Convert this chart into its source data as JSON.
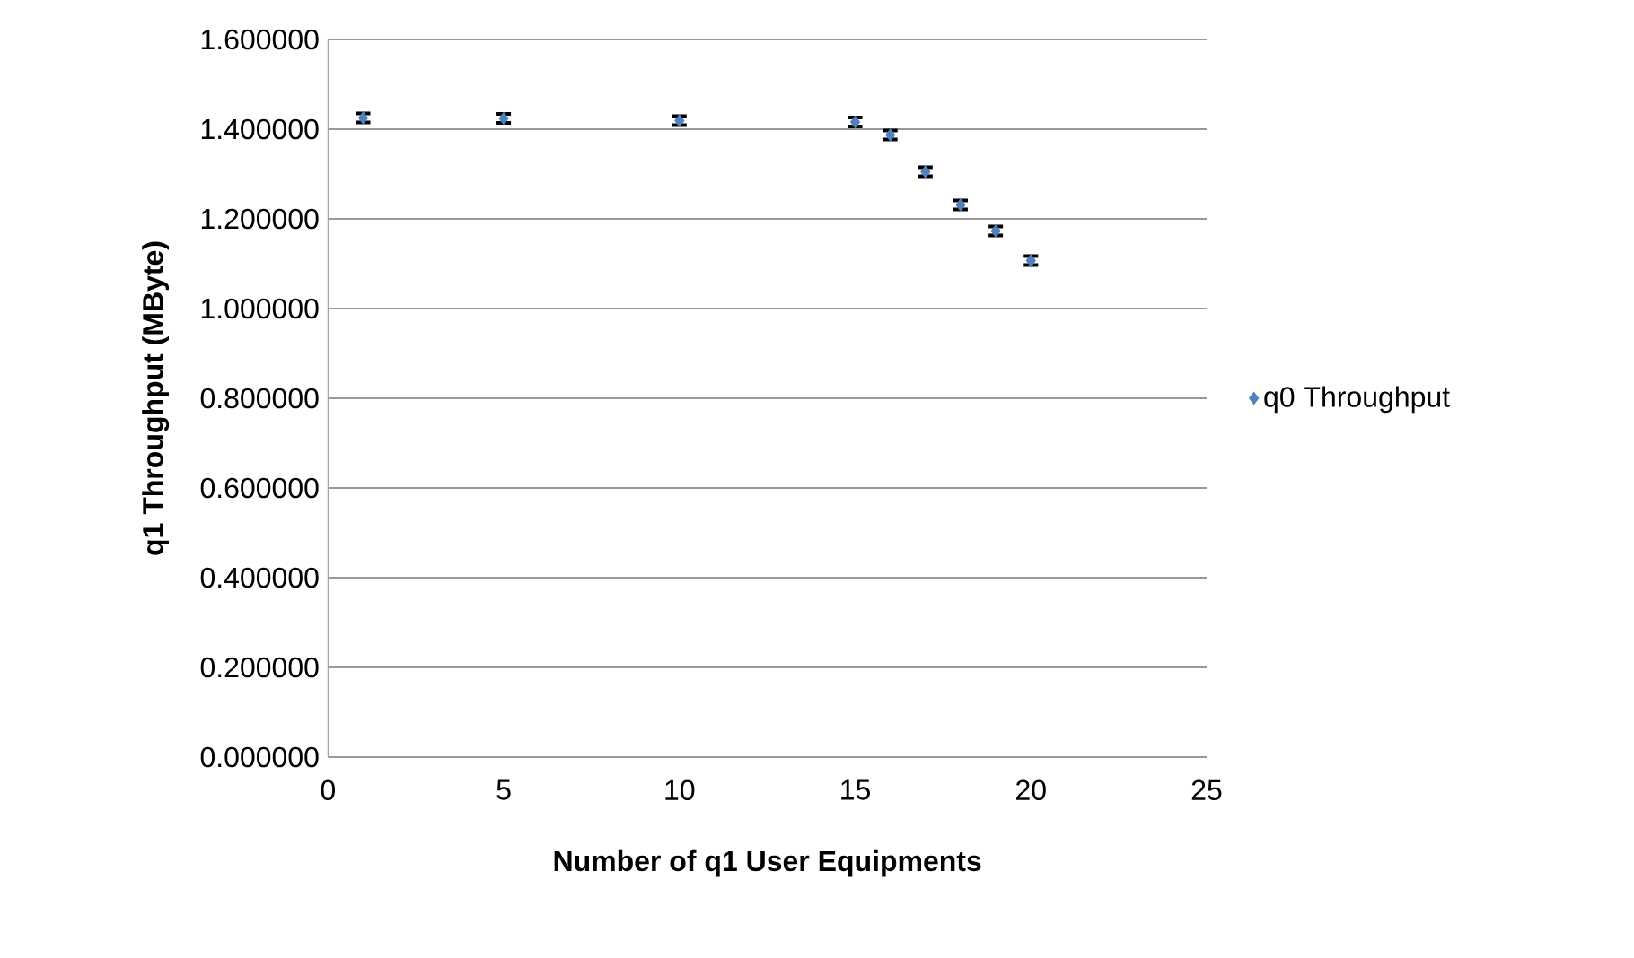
{
  "chart_data": {
    "type": "scatter",
    "xlabel": "Number of q1 User Equipments",
    "ylabel": "q1 Throughput (MByte)",
    "x": [
      1,
      5,
      10,
      15,
      16,
      17,
      18,
      19,
      20
    ],
    "series": [
      {
        "name": "q0 Throughput",
        "color": "#4f81bd",
        "values": [
          1.425,
          1.424,
          1.419,
          1.416,
          1.387,
          1.305,
          1.231,
          1.173,
          1.107
        ],
        "errors": [
          0.01,
          0.01,
          0.01,
          0.01,
          0.01,
          0.01,
          0.01,
          0.01,
          0.01
        ]
      }
    ],
    "xlim": [
      0,
      25
    ],
    "xticks": [
      0,
      5,
      10,
      15,
      20,
      25
    ],
    "ylim": [
      0,
      1.6
    ],
    "yticks": [
      {
        "value": 0,
        "label": "0.000000"
      },
      {
        "value": 0.2,
        "label": "0.200000"
      },
      {
        "value": 0.4,
        "label": "0.400000"
      },
      {
        "value": 0.6,
        "label": "0.600000"
      },
      {
        "value": 0.8,
        "label": "0.800000"
      },
      {
        "value": 1.0,
        "label": "1.000000"
      },
      {
        "value": 1.2,
        "label": "1.200000"
      },
      {
        "value": 1.4,
        "label": "1.400000"
      },
      {
        "value": 1.6,
        "label": "1.600000"
      }
    ],
    "grid": "y",
    "legend": "right",
    "marker": "diamond"
  }
}
